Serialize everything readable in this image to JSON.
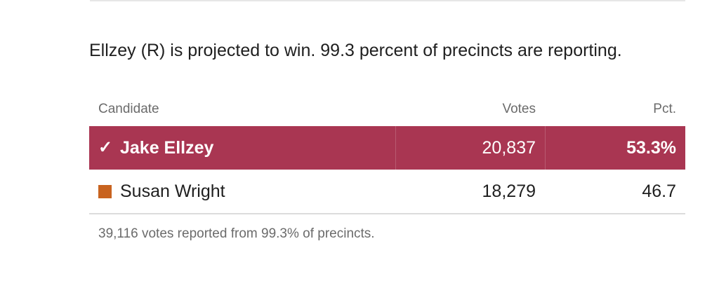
{
  "headline": "Ellzey (R) is projected to win. 99.3 percent of precincts are reporting.",
  "table": {
    "headers": {
      "candidate": "Candidate",
      "votes": "Votes",
      "pct": "Pct."
    },
    "rows": [
      {
        "marker": "✓",
        "name": "Jake Ellzey",
        "votes": "20,837",
        "pct": "53.3%",
        "winner": true,
        "color": "#a93652"
      },
      {
        "marker": "square-swatch",
        "name": "Susan Wright",
        "votes": "18,279",
        "pct": "46.7",
        "winner": false,
        "color": "#c8631f"
      }
    ]
  },
  "footnote": "39,116 votes reported from 99.3% of precincts."
}
